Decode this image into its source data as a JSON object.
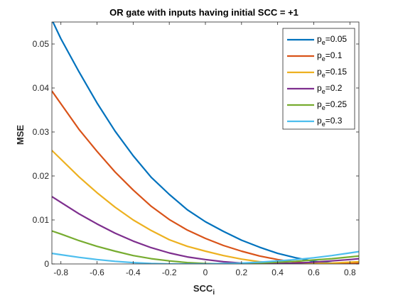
{
  "chart_data": {
    "type": "line",
    "title": "OR gate with inputs having initial SCC = +1",
    "xlabel": "SCC",
    "xlabel_sub": "i",
    "ylabel": "MSE",
    "xlim": [
      -0.85,
      0.85
    ],
    "ylim": [
      0,
      0.055
    ],
    "xticks": [
      -0.8,
      -0.6,
      -0.4,
      -0.2,
      0,
      0.2,
      0.4,
      0.6,
      0.8
    ],
    "xtick_labels": [
      "-0.8",
      "-0.6",
      "-0.4",
      "-0.2",
      "0",
      "0.2",
      "0.4",
      "0.6",
      "0.8"
    ],
    "yticks": [
      0,
      0.01,
      0.02,
      0.03,
      0.04,
      0.05
    ],
    "ytick_labels": [
      "0",
      "0.01",
      "0.02",
      "0.03",
      "0.04",
      "0.05"
    ],
    "grid": false,
    "legend_position": "top-right",
    "x": [
      -0.85,
      -0.8,
      -0.7,
      -0.6,
      -0.5,
      -0.4,
      -0.3,
      -0.2,
      -0.1,
      0,
      0.1,
      0.2,
      0.3,
      0.4,
      0.5,
      0.6,
      0.7,
      0.8,
      0.85
    ],
    "series": [
      {
        "name_main": "p",
        "name_sub": "e",
        "name_suffix": "=0.05",
        "color": "#0072BD",
        "values": [
          0.0555,
          0.0512,
          0.0437,
          0.0366,
          0.0302,
          0.0246,
          0.0197,
          0.0158,
          0.0123,
          0.0096,
          0.0074,
          0.0054,
          0.0038,
          0.0024,
          0.0014,
          0.0006,
          0.0002,
          0.0,
          0.0
        ]
      },
      {
        "name_main": "p",
        "name_sub": "e",
        "name_suffix": "=0.1",
        "color": "#D95319",
        "values": [
          0.0393,
          0.0364,
          0.0306,
          0.0256,
          0.0209,
          0.0168,
          0.0131,
          0.0101,
          0.0077,
          0.0058,
          0.0042,
          0.0029,
          0.0018,
          0.001,
          0.0004,
          0.0001,
          0.0,
          0.0001,
          0.0002
        ]
      },
      {
        "name_main": "p",
        "name_sub": "e",
        "name_suffix": "=0.15",
        "color": "#EDB120",
        "values": [
          0.0258,
          0.0238,
          0.0198,
          0.0162,
          0.0129,
          0.01,
          0.0076,
          0.0055,
          0.004,
          0.0029,
          0.0019,
          0.0011,
          0.0005,
          0.0002,
          0.0001,
          0.0001,
          0.0002,
          0.0004,
          0.0005
        ]
      },
      {
        "name_main": "p",
        "name_sub": "e",
        "name_suffix": "=0.2",
        "color": "#7E2F8E",
        "values": [
          0.0153,
          0.014,
          0.0114,
          0.0091,
          0.007,
          0.0052,
          0.0037,
          0.0025,
          0.0016,
          0.001,
          0.0005,
          0.0002,
          0.0001,
          0.0001,
          0.0002,
          0.0004,
          0.0007,
          0.001,
          0.0012
        ]
      },
      {
        "name_main": "p",
        "name_sub": "e",
        "name_suffix": "=0.25",
        "color": "#77AC30",
        "values": [
          0.0075,
          0.0068,
          0.0053,
          0.004,
          0.0029,
          0.0019,
          0.0012,
          0.0007,
          0.0003,
          0.0001,
          0.0,
          0.0001,
          0.0002,
          0.0004,
          0.0006,
          0.0009,
          0.0012,
          0.0016,
          0.0018
        ]
      },
      {
        "name_main": "p",
        "name_sub": "e",
        "name_suffix": "=0.3",
        "color": "#4DBEEE",
        "values": [
          0.0024,
          0.0021,
          0.0015,
          0.001,
          0.0006,
          0.0003,
          0.0001,
          0.0,
          0.0,
          0.0,
          0.0001,
          0.0002,
          0.0004,
          0.0007,
          0.001,
          0.0014,
          0.0019,
          0.0025,
          0.0028
        ]
      }
    ]
  }
}
